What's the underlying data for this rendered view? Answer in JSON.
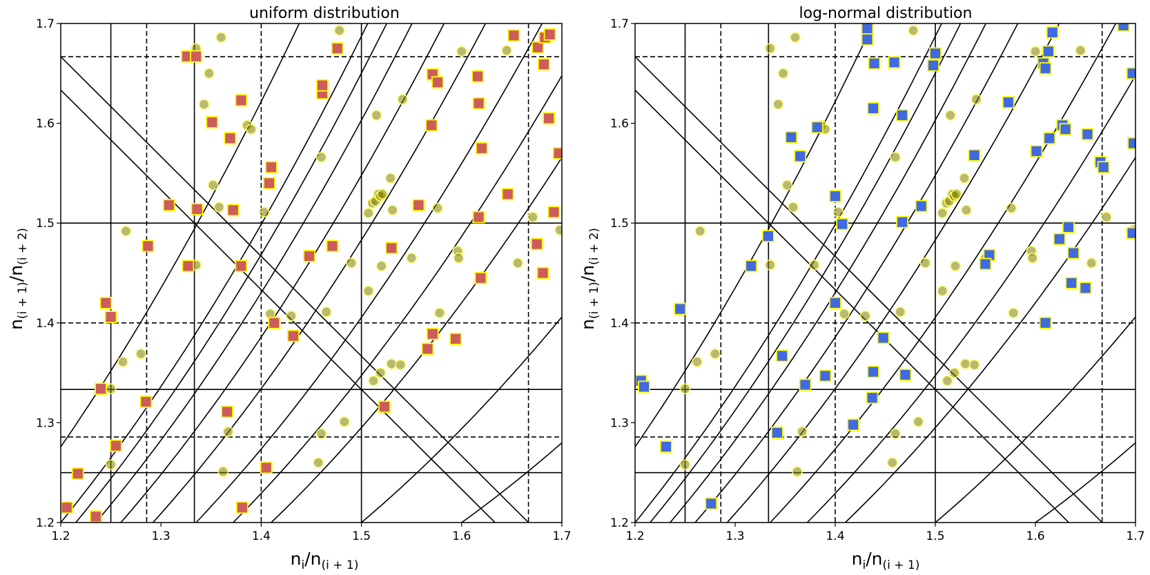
{
  "chart_data": [
    {
      "type": "scatter",
      "title": "uniform distribution",
      "xlabel": "n_i/n_(i+1)",
      "ylabel": "n_(i+1)/n_(i+2)",
      "xlim": [
        1.2,
        1.7
      ],
      "ylim": [
        1.2,
        1.7
      ],
      "xticks": [
        "1.2",
        "1.3",
        "1.4",
        "1.5",
        "1.6",
        "1.7"
      ],
      "yticks": [
        "1.2",
        "1.3",
        "1.4",
        "1.5",
        "1.6",
        "1.7"
      ],
      "series": [
        {
          "name": "background circles",
          "marker": "circle",
          "color": "#808000",
          "edge": "#ffff66",
          "points": [
            [
              1.335,
              1.675
            ],
            [
              1.36,
              1.686
            ],
            [
              1.348,
              1.65
            ],
            [
              1.343,
              1.619
            ],
            [
              1.478,
              1.693
            ],
            [
              1.6,
              1.672
            ],
            [
              1.645,
              1.673
            ],
            [
              1.386,
              1.598
            ],
            [
              1.39,
              1.594
            ],
            [
              1.515,
              1.608
            ],
            [
              1.541,
              1.624
            ],
            [
              1.46,
              1.566
            ],
            [
              1.352,
              1.538
            ],
            [
              1.358,
              1.516
            ],
            [
              1.529,
              1.545
            ],
            [
              1.403,
              1.511
            ],
            [
              1.511,
              1.52
            ],
            [
              1.514,
              1.522
            ],
            [
              1.517,
              1.529
            ],
            [
              1.519,
              1.527
            ],
            [
              1.521,
              1.529
            ],
            [
              1.507,
              1.51
            ],
            [
              1.531,
              1.513
            ],
            [
              1.576,
              1.515
            ],
            [
              1.671,
              1.506
            ],
            [
              1.265,
              1.492
            ],
            [
              1.698,
              1.493
            ],
            [
              1.335,
              1.458
            ],
            [
              1.379,
              1.458
            ],
            [
              1.49,
              1.46
            ],
            [
              1.52,
              1.457
            ],
            [
              1.55,
              1.465
            ],
            [
              1.596,
              1.472
            ],
            [
              1.597,
              1.465
            ],
            [
              1.656,
              1.46
            ],
            [
              1.507,
              1.432
            ],
            [
              1.409,
              1.409
            ],
            [
              1.43,
              1.407
            ],
            [
              1.465,
              1.411
            ],
            [
              1.578,
              1.41
            ],
            [
              1.262,
              1.361
            ],
            [
              1.28,
              1.369
            ],
            [
              1.512,
              1.342
            ],
            [
              1.519,
              1.35
            ],
            [
              1.53,
              1.359
            ],
            [
              1.539,
              1.358
            ],
            [
              1.25,
              1.334
            ],
            [
              1.483,
              1.301
            ],
            [
              1.367,
              1.291
            ],
            [
              1.46,
              1.289
            ],
            [
              1.25,
              1.258
            ],
            [
              1.362,
              1.251
            ],
            [
              1.457,
              1.26
            ]
          ]
        },
        {
          "name": "uniform samples",
          "marker": "square",
          "color": "#cd5c5c",
          "edge": "#ffff00",
          "points": [
            [
              1.326,
              1.667
            ],
            [
              1.335,
              1.667
            ],
            [
              1.476,
              1.675
            ],
            [
              1.652,
              1.688
            ],
            [
              1.676,
              1.676
            ],
            [
              1.683,
              1.686
            ],
            [
              1.688,
              1.689
            ],
            [
              1.682,
              1.659
            ],
            [
              1.571,
              1.649
            ],
            [
              1.576,
              1.641
            ],
            [
              1.461,
              1.63
            ],
            [
              1.461,
              1.638
            ],
            [
              1.616,
              1.647
            ],
            [
              1.617,
              1.62
            ],
            [
              1.38,
              1.623
            ],
            [
              1.351,
              1.601
            ],
            [
              1.369,
              1.585
            ],
            [
              1.57,
              1.598
            ],
            [
              1.687,
              1.605
            ],
            [
              1.697,
              1.57
            ],
            [
              1.62,
              1.575
            ],
            [
              1.41,
              1.556
            ],
            [
              1.408,
              1.54
            ],
            [
              1.308,
              1.518
            ],
            [
              1.336,
              1.514
            ],
            [
              1.372,
              1.513
            ],
            [
              1.557,
              1.518
            ],
            [
              1.646,
              1.529
            ],
            [
              1.617,
              1.506
            ],
            [
              1.692,
              1.511
            ],
            [
              1.287,
              1.477
            ],
            [
              1.327,
              1.457
            ],
            [
              1.38,
              1.457
            ],
            [
              1.471,
              1.477
            ],
            [
              1.53,
              1.475
            ],
            [
              1.448,
              1.467
            ],
            [
              1.675,
              1.479
            ],
            [
              1.681,
              1.45
            ],
            [
              1.619,
              1.445
            ],
            [
              1.245,
              1.42
            ],
            [
              1.25,
              1.406
            ],
            [
              1.413,
              1.4
            ],
            [
              1.432,
              1.387
            ],
            [
              1.571,
              1.389
            ],
            [
              1.566,
              1.374
            ],
            [
              1.594,
              1.384
            ],
            [
              1.24,
              1.334
            ],
            [
              1.285,
              1.321
            ],
            [
              1.366,
              1.311
            ],
            [
              1.523,
              1.316
            ],
            [
              1.255,
              1.277
            ],
            [
              1.217,
              1.249
            ],
            [
              1.206,
              1.215
            ],
            [
              1.235,
              1.206
            ],
            [
              1.405,
              1.255
            ],
            [
              1.381,
              1.215
            ]
          ]
        }
      ]
    },
    {
      "type": "scatter",
      "title": "log-normal distribution",
      "xlabel": "n_i/n_(i+1)",
      "ylabel": "n_(i+1)/n_(i+2)",
      "xlim": [
        1.2,
        1.7
      ],
      "ylim": [
        1.2,
        1.7
      ],
      "xticks": [
        "1.2",
        "1.3",
        "1.4",
        "1.5",
        "1.6",
        "1.7"
      ],
      "yticks": [
        "1.2",
        "1.3",
        "1.4",
        "1.5",
        "1.6",
        "1.7"
      ],
      "series": [
        {
          "name": "background circles",
          "marker": "circle",
          "color": "#808000",
          "edge": "#ffff66",
          "points": [
            [
              1.335,
              1.675
            ],
            [
              1.36,
              1.686
            ],
            [
              1.348,
              1.65
            ],
            [
              1.343,
              1.619
            ],
            [
              1.478,
              1.693
            ],
            [
              1.6,
              1.672
            ],
            [
              1.645,
              1.673
            ],
            [
              1.386,
              1.598
            ],
            [
              1.39,
              1.594
            ],
            [
              1.515,
              1.608
            ],
            [
              1.541,
              1.624
            ],
            [
              1.46,
              1.566
            ],
            [
              1.352,
              1.538
            ],
            [
              1.358,
              1.516
            ],
            [
              1.529,
              1.545
            ],
            [
              1.403,
              1.511
            ],
            [
              1.511,
              1.52
            ],
            [
              1.514,
              1.522
            ],
            [
              1.517,
              1.529
            ],
            [
              1.519,
              1.527
            ],
            [
              1.521,
              1.529
            ],
            [
              1.507,
              1.51
            ],
            [
              1.531,
              1.513
            ],
            [
              1.576,
              1.515
            ],
            [
              1.671,
              1.506
            ],
            [
              1.265,
              1.492
            ],
            [
              1.698,
              1.493
            ],
            [
              1.335,
              1.458
            ],
            [
              1.379,
              1.458
            ],
            [
              1.49,
              1.46
            ],
            [
              1.52,
              1.457
            ],
            [
              1.55,
              1.465
            ],
            [
              1.596,
              1.472
            ],
            [
              1.597,
              1.465
            ],
            [
              1.656,
              1.46
            ],
            [
              1.507,
              1.432
            ],
            [
              1.409,
              1.409
            ],
            [
              1.43,
              1.407
            ],
            [
              1.465,
              1.411
            ],
            [
              1.578,
              1.41
            ],
            [
              1.262,
              1.361
            ],
            [
              1.28,
              1.369
            ],
            [
              1.512,
              1.342
            ],
            [
              1.519,
              1.35
            ],
            [
              1.53,
              1.359
            ],
            [
              1.539,
              1.358
            ],
            [
              1.25,
              1.334
            ],
            [
              1.483,
              1.301
            ],
            [
              1.367,
              1.291
            ],
            [
              1.46,
              1.289
            ],
            [
              1.25,
              1.258
            ],
            [
              1.362,
              1.251
            ],
            [
              1.457,
              1.26
            ]
          ]
        },
        {
          "name": "log-normal samples",
          "marker": "square",
          "color": "#4169e1",
          "edge": "#ffff00",
          "points": [
            [
              1.432,
              1.695
            ],
            [
              1.432,
              1.684
            ],
            [
              1.617,
              1.691
            ],
            [
              1.688,
              1.698
            ],
            [
              1.439,
              1.66
            ],
            [
              1.459,
              1.661
            ],
            [
              1.5,
              1.67
            ],
            [
              1.498,
              1.658
            ],
            [
              1.608,
              1.66
            ],
            [
              1.613,
              1.672
            ],
            [
              1.61,
              1.655
            ],
            [
              1.697,
              1.65
            ],
            [
              1.438,
              1.615
            ],
            [
              1.467,
              1.608
            ],
            [
              1.382,
              1.596
            ],
            [
              1.356,
              1.586
            ],
            [
              1.365,
              1.567
            ],
            [
              1.573,
              1.621
            ],
            [
              1.627,
              1.598
            ],
            [
              1.63,
              1.594
            ],
            [
              1.614,
              1.585
            ],
            [
              1.601,
              1.572
            ],
            [
              1.652,
              1.589
            ],
            [
              1.698,
              1.58
            ],
            [
              1.539,
              1.568
            ],
            [
              1.665,
              1.561
            ],
            [
              1.668,
              1.556
            ],
            [
              1.4,
              1.527
            ],
            [
              1.407,
              1.499
            ],
            [
              1.467,
              1.501
            ],
            [
              1.486,
              1.517
            ],
            [
              1.333,
              1.487
            ],
            [
              1.316,
              1.457
            ],
            [
              1.624,
              1.484
            ],
            [
              1.633,
              1.496
            ],
            [
              1.638,
              1.47
            ],
            [
              1.697,
              1.49
            ],
            [
              1.554,
              1.468
            ],
            [
              1.55,
              1.459
            ],
            [
              1.636,
              1.44
            ],
            [
              1.65,
              1.435
            ],
            [
              1.245,
              1.414
            ],
            [
              1.4,
              1.42
            ],
            [
              1.448,
              1.385
            ],
            [
              1.61,
              1.4
            ],
            [
              1.347,
              1.367
            ],
            [
              1.39,
              1.347
            ],
            [
              1.438,
              1.351
            ],
            [
              1.37,
              1.338
            ],
            [
              1.437,
              1.325
            ],
            [
              1.47,
              1.348
            ],
            [
              1.206,
              1.342
            ],
            [
              1.209,
              1.336
            ],
            [
              1.342,
              1.29
            ],
            [
              1.418,
              1.298
            ],
            [
              1.231,
              1.276
            ],
            [
              1.276,
              1.219
            ]
          ]
        }
      ]
    }
  ]
}
